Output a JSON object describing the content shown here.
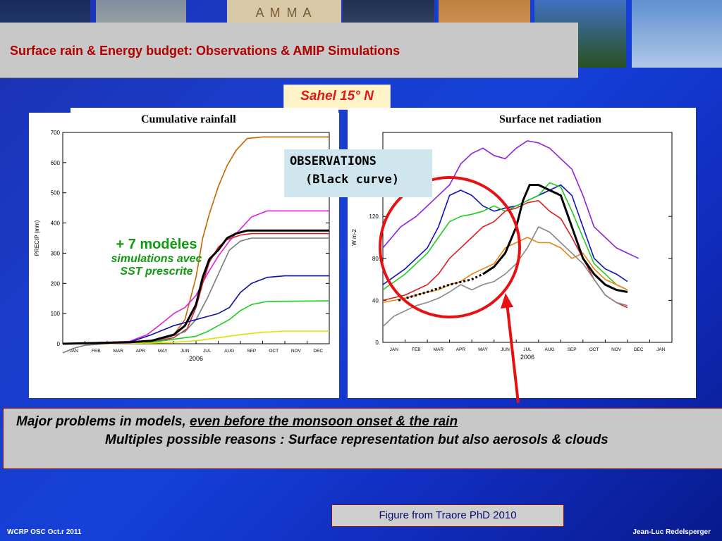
{
  "slide": {
    "title": "Surface rain & Energy budget: Observations & AMIP Simulations",
    "region_label": "Sahel 15°  N",
    "observations_box": {
      "line1": "OBSERVATIONS",
      "line2": "(Black curve)"
    },
    "models_note": {
      "line1": "+ 7 modèles",
      "line2": "simulations avec",
      "line3": "SST prescrite"
    },
    "problems": {
      "line1_prefix": "Major problems in models, ",
      "line1_underlined": "even before the monsoon onset & the rain",
      "line2": "Multiples possible reasons : Surface representation but also aerosols & clouds"
    },
    "figure_credit": "Figure from Traore PhD  2010",
    "footer_left": "WCRP OSC Oct.r 2011",
    "footer_right": "Jean-Luc Redelsperger",
    "logo_text": "A M M A",
    "colors": {
      "title": "#b00000",
      "sahel": "#e01818",
      "models_note": "#119911",
      "circle": "#e81010",
      "arrow": "#e81010"
    }
  },
  "chart_data": [
    {
      "type": "line",
      "title": "Cumulative rainfall",
      "ylabel": "PRECIP (mm)",
      "xlabel": "2006",
      "ylim": [
        0,
        700
      ],
      "yticks": [
        0,
        100,
        200,
        300,
        400,
        500,
        600,
        700
      ],
      "months": [
        "JAN",
        "FEB",
        "MAR",
        "APR",
        "MAY",
        "JUN",
        "JUL",
        "AUG",
        "SEP",
        "OCT",
        "NOV",
        "DEC"
      ],
      "x_unit": "month index (0 = Jan 1, 12 = Dec 31)",
      "series": [
        {
          "color": "#000000",
          "is_observation": true,
          "points": [
            [
              0,
              0
            ],
            [
              3,
              5
            ],
            [
              4,
              10
            ],
            [
              5,
              30
            ],
            [
              5.5,
              60
            ],
            [
              6,
              130
            ],
            [
              6.3,
              220
            ],
            [
              6.6,
              280
            ],
            [
              7,
              310
            ],
            [
              7.4,
              350
            ],
            [
              7.8,
              365
            ],
            [
              8.3,
              375
            ],
            [
              12,
              375
            ]
          ]
        },
        {
          "color": "#c86400",
          "points": [
            [
              0,
              0
            ],
            [
              4,
              5
            ],
            [
              5,
              30
            ],
            [
              5.5,
              80
            ],
            [
              6,
              220
            ],
            [
              6.3,
              350
            ],
            [
              6.6,
              430
            ],
            [
              7,
              520
            ],
            [
              7.4,
              590
            ],
            [
              7.8,
              640
            ],
            [
              8.3,
              680
            ],
            [
              9,
              685
            ],
            [
              12,
              685
            ]
          ]
        },
        {
          "color": "#e020e0",
          "points": [
            [
              0,
              0
            ],
            [
              3,
              8
            ],
            [
              3.8,
              30
            ],
            [
              4.5,
              70
            ],
            [
              5,
              100
            ],
            [
              5.5,
              120
            ],
            [
              6,
              160
            ],
            [
              6.5,
              230
            ],
            [
              7,
              290
            ],
            [
              7.5,
              340
            ],
            [
              8,
              380
            ],
            [
              8.5,
              420
            ],
            [
              9.2,
              440
            ],
            [
              12,
              440
            ]
          ]
        },
        {
          "color": "#d82020",
          "points": [
            [
              0,
              0
            ],
            [
              4,
              5
            ],
            [
              5,
              20
            ],
            [
              5.6,
              50
            ],
            [
              6,
              120
            ],
            [
              6.3,
              200
            ],
            [
              6.6,
              270
            ],
            [
              7,
              320
            ],
            [
              7.4,
              345
            ],
            [
              8,
              360
            ],
            [
              8.5,
              365
            ],
            [
              12,
              365
            ]
          ]
        },
        {
          "color": "#7a7a7a",
          "points": [
            [
              0,
              -30
            ],
            [
              0.5,
              -15
            ],
            [
              1,
              -5
            ],
            [
              3,
              5
            ],
            [
              4.5,
              15
            ],
            [
              5.5,
              40
            ],
            [
              6,
              80
            ],
            [
              6.5,
              150
            ],
            [
              7,
              230
            ],
            [
              7.5,
              310
            ],
            [
              8,
              340
            ],
            [
              8.5,
              350
            ],
            [
              12,
              350
            ]
          ]
        },
        {
          "color": "#1010a0",
          "points": [
            [
              0,
              0
            ],
            [
              3,
              5
            ],
            [
              4,
              30
            ],
            [
              5,
              60
            ],
            [
              5.5,
              70
            ],
            [
              6,
              80
            ],
            [
              6.5,
              90
            ],
            [
              7,
              100
            ],
            [
              7.5,
              120
            ],
            [
              8,
              170
            ],
            [
              8.5,
              200
            ],
            [
              9.2,
              220
            ],
            [
              10,
              225
            ],
            [
              12,
              225
            ]
          ]
        },
        {
          "color": "#20cc20",
          "points": [
            [
              0,
              0
            ],
            [
              4,
              5
            ],
            [
              5,
              15
            ],
            [
              6,
              25
            ],
            [
              6.5,
              40
            ],
            [
              7,
              60
            ],
            [
              7.5,
              80
            ],
            [
              8,
              110
            ],
            [
              8.5,
              130
            ],
            [
              9.2,
              140
            ],
            [
              12,
              142
            ]
          ]
        },
        {
          "color": "#e0e000",
          "points": [
            [
              0,
              0
            ],
            [
              4,
              2
            ],
            [
              5,
              5
            ],
            [
              6,
              10
            ],
            [
              7,
              20
            ],
            [
              8,
              30
            ],
            [
              9,
              38
            ],
            [
              10,
              42
            ],
            [
              12,
              42
            ]
          ]
        }
      ]
    },
    {
      "type": "line",
      "title": "Surface net radiation",
      "ylabel": "W m-2",
      "xlabel": "2006",
      "ylim": [
        0,
        200
      ],
      "yticks": [
        0,
        40,
        80,
        120
      ],
      "months": [
        "JAN",
        "FEB",
        "MAR",
        "APR",
        "MAY",
        "JUN",
        "JUL",
        "AUG",
        "SEP",
        "OCT",
        "NOV",
        "DEC",
        "JAN"
      ],
      "x_unit": "month index (0 = Jan 1, 12 = Dec 31)",
      "series": [
        {
          "color": "#000000",
          "is_observation": true,
          "points": [
            [
              4.5,
              65
            ],
            [
              5,
              72
            ],
            [
              5.5,
              85
            ],
            [
              6,
              110
            ],
            [
              6.3,
              135
            ],
            [
              6.6,
              150
            ],
            [
              7,
              150
            ],
            [
              7.5,
              145
            ],
            [
              8,
              140
            ],
            [
              8.5,
              110
            ],
            [
              9,
              80
            ],
            [
              9.5,
              65
            ],
            [
              10,
              55
            ],
            [
              10.5,
              50
            ],
            [
              11,
              48
            ]
          ]
        },
        {
          "color": "#000000",
          "is_observation": true,
          "dashed": true,
          "points": [
            [
              0.7,
              40
            ],
            [
              2,
              48
            ],
            [
              3,
              55
            ],
            [
              4,
              60
            ],
            [
              4.5,
              65
            ]
          ]
        },
        {
          "color": "#9020e0",
          "points": [
            [
              0,
              90
            ],
            [
              0.8,
              110
            ],
            [
              1.5,
              120
            ],
            [
              2,
              130
            ],
            [
              2.5,
              140
            ],
            [
              3,
              150
            ],
            [
              3.5,
              170
            ],
            [
              4,
              180
            ],
            [
              4.5,
              185
            ],
            [
              5,
              178
            ],
            [
              5.5,
              175
            ],
            [
              6,
              185
            ],
            [
              6.5,
              192
            ],
            [
              7,
              190
            ],
            [
              7.5,
              185
            ],
            [
              8,
              175
            ],
            [
              8.5,
              165
            ],
            [
              9,
              140
            ],
            [
              9.5,
              110
            ],
            [
              10,
              100
            ],
            [
              10.5,
              90
            ],
            [
              11,
              85
            ],
            [
              11.5,
              80
            ]
          ]
        },
        {
          "color": "#1010c0",
          "points": [
            [
              0,
              55
            ],
            [
              1,
              70
            ],
            [
              2,
              90
            ],
            [
              2.5,
              110
            ],
            [
              3,
              140
            ],
            [
              3.5,
              145
            ],
            [
              4,
              140
            ],
            [
              4.5,
              130
            ],
            [
              5,
              125
            ],
            [
              5.5,
              128
            ],
            [
              6,
              130
            ],
            [
              6.5,
              135
            ],
            [
              7,
              140
            ],
            [
              7.5,
              145
            ],
            [
              8,
              150
            ],
            [
              8.5,
              140
            ],
            [
              9,
              110
            ],
            [
              9.5,
              80
            ],
            [
              10,
              70
            ],
            [
              10.5,
              65
            ],
            [
              11,
              58
            ]
          ]
        },
        {
          "color": "#20cc20",
          "points": [
            [
              0,
              50
            ],
            [
              1,
              65
            ],
            [
              2,
              85
            ],
            [
              2.5,
              100
            ],
            [
              3,
              115
            ],
            [
              3.5,
              120
            ],
            [
              4,
              122
            ],
            [
              4.5,
              125
            ],
            [
              5,
              130
            ],
            [
              5.5,
              125
            ],
            [
              6,
              130
            ],
            [
              6.5,
              135
            ],
            [
              7,
              140
            ],
            [
              7.5,
              152
            ],
            [
              8,
              148
            ],
            [
              8.5,
              125
            ],
            [
              9,
              100
            ],
            [
              9.5,
              75
            ],
            [
              10,
              65
            ],
            [
              10.5,
              55
            ],
            [
              11,
              50
            ]
          ]
        },
        {
          "color": "#d82020",
          "points": [
            [
              0,
              40
            ],
            [
              1,
              45
            ],
            [
              2,
              55
            ],
            [
              2.5,
              65
            ],
            [
              3,
              80
            ],
            [
              3.5,
              90
            ],
            [
              4,
              100
            ],
            [
              4.5,
              110
            ],
            [
              5,
              115
            ],
            [
              5.5,
              125
            ],
            [
              6,
              128
            ],
            [
              6.5,
              133
            ],
            [
              7,
              135
            ],
            [
              7.5,
              125
            ],
            [
              8,
              118
            ],
            [
              8.5,
              100
            ],
            [
              9,
              80
            ],
            [
              9.5,
              60
            ],
            [
              10,
              45
            ],
            [
              10.5,
              38
            ],
            [
              11,
              33
            ]
          ]
        },
        {
          "color": "#f08010",
          "points": [
            [
              0,
              38
            ],
            [
              1,
              42
            ],
            [
              2,
              48
            ],
            [
              2.5,
              50
            ],
            [
              3,
              55
            ],
            [
              3.5,
              58
            ],
            [
              4,
              65
            ],
            [
              4.5,
              70
            ],
            [
              5,
              75
            ],
            [
              5.5,
              90
            ],
            [
              6,
              95
            ],
            [
              6.5,
              100
            ],
            [
              7,
              95
            ],
            [
              7.5,
              95
            ],
            [
              8,
              90
            ],
            [
              8.5,
              80
            ],
            [
              9,
              85
            ],
            [
              9.5,
              70
            ],
            [
              10,
              60
            ],
            [
              10.5,
              55
            ],
            [
              11,
              50
            ]
          ]
        },
        {
          "color": "#888888",
          "points": [
            [
              0,
              15
            ],
            [
              0.5,
              25
            ],
            [
              1,
              30
            ],
            [
              1.5,
              35
            ],
            [
              2,
              38
            ],
            [
              2.5,
              42
            ],
            [
              3,
              48
            ],
            [
              3.5,
              55
            ],
            [
              4,
              50
            ],
            [
              4.5,
              55
            ],
            [
              5,
              58
            ],
            [
              5.5,
              65
            ],
            [
              6,
              75
            ],
            [
              6.5,
              90
            ],
            [
              7,
              110
            ],
            [
              7.5,
              105
            ],
            [
              8,
              95
            ],
            [
              8.5,
              85
            ],
            [
              9,
              75
            ],
            [
              9.5,
              60
            ],
            [
              10,
              45
            ],
            [
              10.5,
              38
            ],
            [
              11,
              35
            ]
          ]
        }
      ]
    }
  ]
}
